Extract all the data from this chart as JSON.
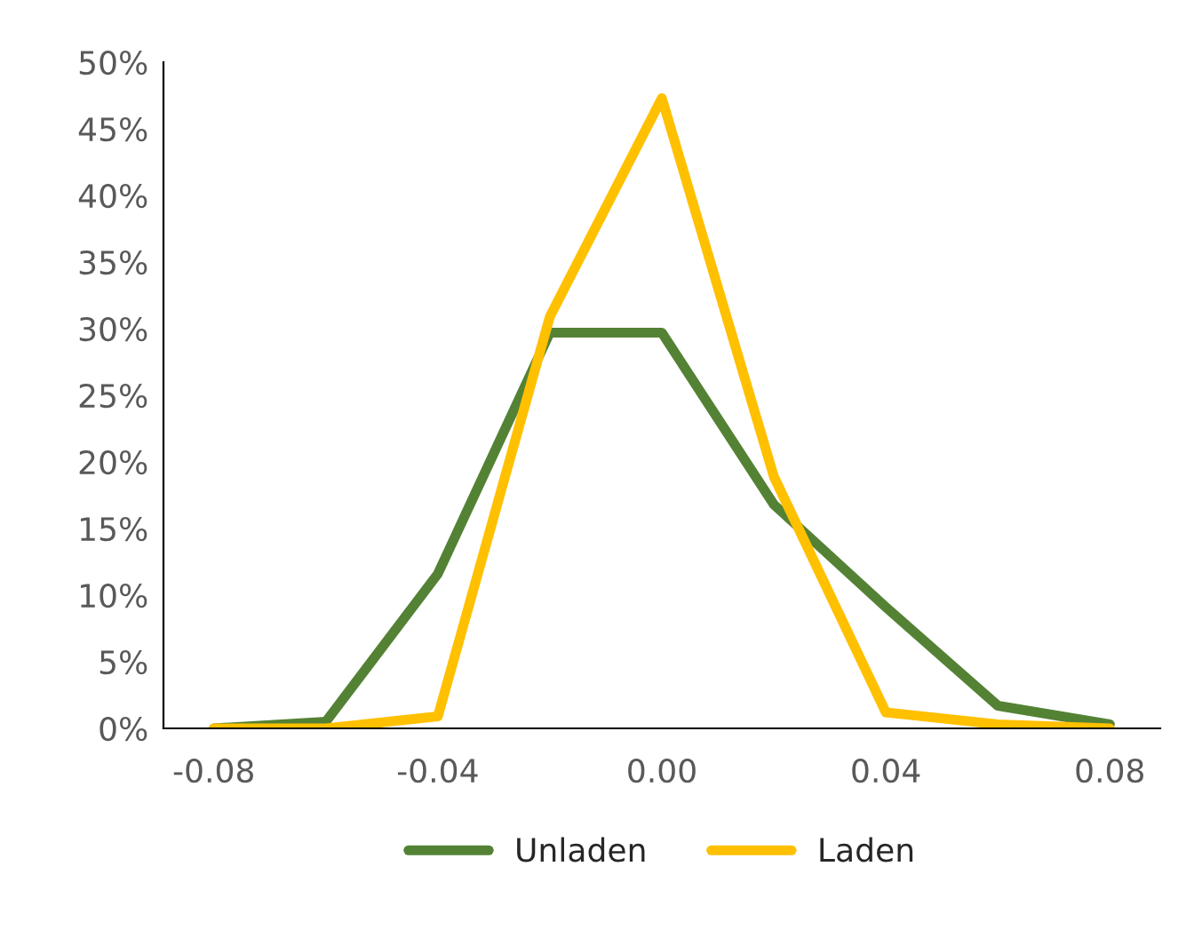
{
  "chart_data": {
    "type": "line",
    "x": [
      -0.08,
      -0.06,
      -0.04,
      -0.02,
      0.0,
      0.02,
      0.04,
      0.06,
      0.08
    ],
    "series": [
      {
        "name": "Unladen",
        "color": "#548235",
        "values": [
          0,
          0.5,
          11.6,
          29.7,
          29.7,
          16.8,
          9.1,
          1.7,
          0.3
        ]
      },
      {
        "name": "Laden",
        "color": "#ffc000",
        "values": [
          0,
          0,
          0.9,
          30.9,
          47.3,
          18.9,
          1.2,
          0.3,
          0
        ]
      }
    ],
    "xlim": [
      -0.089,
      0.089
    ],
    "xticks": [
      {
        "value": -0.08,
        "label": "-0.08"
      },
      {
        "value": -0.04,
        "label": "-0.04"
      },
      {
        "value": 0,
        "label": "0.00"
      },
      {
        "value": 0.04,
        "label": "0.04"
      },
      {
        "value": 0.08,
        "label": "0.08"
      }
    ],
    "ylim": [
      0,
      50
    ],
    "yticks": [
      {
        "value": 0,
        "label": "0%"
      },
      {
        "value": 5,
        "label": "5%"
      },
      {
        "value": 10,
        "label": "10%"
      },
      {
        "value": 15,
        "label": "15%"
      },
      {
        "value": 20,
        "label": "20%"
      },
      {
        "value": 25,
        "label": "25%"
      },
      {
        "value": 30,
        "label": "30%"
      },
      {
        "value": 35,
        "label": "35%"
      },
      {
        "value": 40,
        "label": "40%"
      },
      {
        "value": 45,
        "label": "45%"
      },
      {
        "value": 50,
        "label": "50%"
      }
    ],
    "grid": false,
    "legend": "bottom",
    "marker": "none",
    "line_style": "solid"
  }
}
